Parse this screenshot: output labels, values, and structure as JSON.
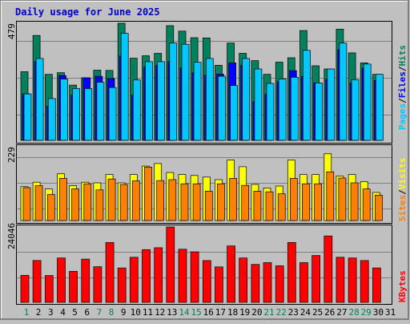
{
  "chart_data": [
    {
      "type": "bar",
      "title": "Daily usage for June 2025",
      "categories": [
        "1",
        "2",
        "3",
        "4",
        "5",
        "6",
        "7",
        "8",
        "9",
        "10",
        "11",
        "12",
        "13",
        "14",
        "15",
        "16",
        "17",
        "18",
        "19",
        "20",
        "21",
        "22",
        "23",
        "24",
        "25",
        "26",
        "27",
        "28",
        "29",
        "30",
        "31"
      ],
      "weekend_days": [
        "1",
        "7",
        "8",
        "14",
        "15",
        "21",
        "22",
        "28",
        "29"
      ],
      "y_max_label": "479",
      "ylim": [
        0,
        479
      ],
      "series": [
        {
          "name": "Hits",
          "color": "#00805c",
          "values": [
            281,
            429,
            270,
            277,
            226,
            256,
            287,
            286,
            479,
            336,
            346,
            356,
            469,
            447,
            420,
            419,
            307,
            398,
            356,
            326,
            270,
            320,
            338,
            449,
            305,
            292,
            455,
            358,
            317,
            270,
            0
          ]
        },
        {
          "name": "Files",
          "color": "#0000ff",
          "values": [
            190,
            322,
            140,
            265,
            185,
            256,
            262,
            253,
            345,
            185,
            300,
            306,
            322,
            296,
            277,
            266,
            271,
            317,
            307,
            158,
            188,
            240,
            285,
            262,
            235,
            250,
            371,
            235,
            295,
            245,
            0
          ]
        },
        {
          "name": "Pages",
          "color": "#00c8ff",
          "values": [
            190,
            335,
            171,
            251,
            212,
            212,
            238,
            216,
            438,
            247,
            322,
            322,
            398,
            393,
            320,
            335,
            262,
            224,
            335,
            292,
            233,
            251,
            258,
            368,
            235,
            292,
            398,
            248,
            312,
            270,
            0
          ]
        }
      ]
    },
    {
      "type": "bar",
      "y_max_label": "229",
      "ylim": [
        0,
        229
      ],
      "series": [
        {
          "name": "Visits",
          "color": "#ffff00",
          "values": [
            105,
            119,
            98,
            145,
            108,
            119,
            117,
            143,
            117,
            143,
            169,
            177,
            149,
            143,
            140,
            135,
            127,
            188,
            167,
            112,
            101,
            107,
            188,
            143,
            143,
            207,
            138,
            143,
            121,
            87,
            0
          ]
        },
        {
          "name": "Sites",
          "color": "#ff8000",
          "values": [
            102,
            108,
            81,
            131,
            98,
            114,
            95,
            129,
            112,
            123,
            166,
            124,
            127,
            114,
            114,
            91,
            114,
            131,
            109,
            91,
            89,
            83,
            131,
            114,
            114,
            151,
            132,
            117,
            98,
            79,
            0
          ]
        }
      ]
    },
    {
      "type": "bar",
      "y_max_label": "24046",
      "ylim": [
        0,
        24046
      ],
      "series": [
        {
          "name": "KBytes",
          "color": "#ff0000",
          "values": [
            8616,
            13356,
            8537,
            14159,
            9896,
            13781,
            11347,
            19072,
            10971,
            14380,
            16809,
            17408,
            24046,
            16929,
            16106,
            13317,
            11307,
            17987,
            14159,
            12093,
            12674,
            11627,
            19072,
            12673,
            14931,
            21174,
            14380,
            14159,
            13317,
            10971,
            0
          ]
        }
      ]
    }
  ]
}
